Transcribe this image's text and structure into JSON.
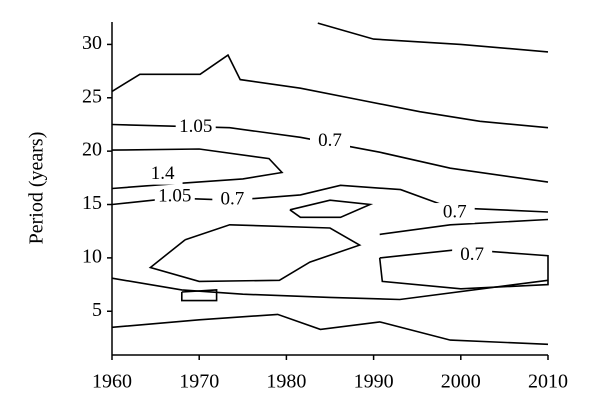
{
  "chart_data": {
    "type": "contour",
    "ylabel": "Period (years)",
    "xlim": [
      1960,
      2010
    ],
    "ylim": [
      0.9,
      32.1
    ],
    "xticks": [
      1960,
      1970,
      1980,
      1990,
      2000,
      2010
    ],
    "yticks": [
      5,
      10,
      15,
      20,
      25,
      30
    ],
    "color": "#000000",
    "contours": [
      {
        "x": [
          1960,
          1963.2,
          1970.1,
          1973.3,
          1974.7,
          1981.6,
          1988.4,
          1995.3,
          2002.2,
          2010
        ],
        "y": [
          25.6,
          27.2,
          27.2,
          29.0,
          26.7,
          25.9,
          24.8,
          23.7,
          22.8,
          22.2
        ]
      },
      {
        "x": [
          1983.6,
          1990,
          2000,
          2010
        ],
        "y": [
          32,
          30.5,
          30,
          29.3
        ]
      },
      {
        "x": [
          1960,
          1973.5,
          1981.6,
          1990.7,
          1998.8,
          2010
        ],
        "y": [
          22.5,
          22.2,
          21.3,
          19.9,
          18.4,
          17.1
        ]
      },
      {
        "x": [
          1960,
          1970,
          1978,
          1979.5,
          1975,
          1968,
          1960
        ],
        "y": [
          20.1,
          20.2,
          19.3,
          18.0,
          17.4,
          17,
          16.5
        ]
      },
      {
        "x": [
          1960,
          1967,
          1973.8,
          1981.6,
          1986.2,
          1993.1,
          1998.8,
          2004.5,
          2010
        ],
        "y": [
          15.0,
          15.6,
          15.4,
          15.9,
          16.8,
          16.4,
          14.7,
          14.5,
          14.3
        ]
      },
      {
        "x": [
          1980.4,
          1985,
          1989.6,
          1986.2,
          1981.6,
          1980.4
        ],
        "y": [
          14.5,
          15.4,
          15,
          13.8,
          13.8,
          14.5
        ]
      },
      {
        "x": [
          1968.4,
          1973.5,
          1985,
          1988.4,
          1982.7,
          1979.2,
          1970,
          1964.4,
          1968.4
        ],
        "y": [
          11.7,
          13.1,
          12.8,
          11.2,
          9.6,
          7.9,
          7.8,
          9.1,
          11.7
        ]
      },
      {
        "x": [
          1990.7,
          1998.8,
          2010
        ],
        "y": [
          12.2,
          13.1,
          13.6
        ]
      },
      {
        "x": [
          1990.7,
          2000,
          2010,
          2010,
          2000,
          1991,
          1990.7
        ],
        "y": [
          10,
          10.8,
          10.2,
          7.5,
          7.1,
          7.8,
          10
        ]
      },
      {
        "x": [
          1960,
          1968,
          1975,
          1985,
          1993,
          2010
        ],
        "y": [
          8.1,
          7.0,
          6.6,
          6.3,
          6.1,
          7.9
        ]
      },
      {
        "x": [
          1968,
          1972,
          1972,
          1968,
          1968
        ],
        "y": [
          6.8,
          7,
          6,
          6.0,
          6.8
        ]
      },
      {
        "x": [
          1960,
          1970,
          1979,
          1983.9,
          1990.7,
          1998.8,
          2010
        ],
        "y": [
          3.5,
          4.2,
          4.7,
          3.3,
          4.0,
          2.3,
          1.9
        ]
      }
    ],
    "contour_labels": [
      {
        "text": "1.05",
        "x": 1969.6,
        "y": 22.2
      },
      {
        "text": "0.7",
        "x": 1985,
        "y": 20.9
      },
      {
        "text": "1.4",
        "x": 1965.8,
        "y": 17.8
      },
      {
        "text": "1.05",
        "x": 1967.2,
        "y": 15.7
      },
      {
        "text": "0.7",
        "x": 1973.8,
        "y": 15.4
      },
      {
        "text": "0.7",
        "x": 1999.3,
        "y": 14.2
      },
      {
        "text": "0.7",
        "x": 2001.3,
        "y": 10.2
      }
    ]
  }
}
